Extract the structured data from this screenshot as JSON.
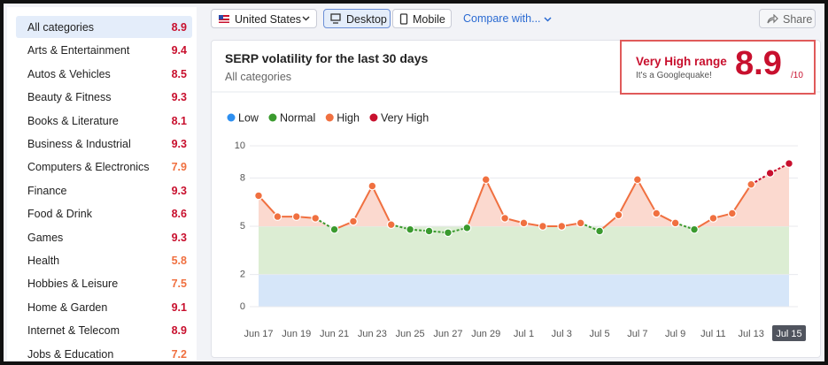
{
  "sidebar": {
    "items": [
      {
        "label": "All categories",
        "score": 8.9
      },
      {
        "label": "Arts & Entertainment",
        "score": 9.4
      },
      {
        "label": "Autos & Vehicles",
        "score": 8.5
      },
      {
        "label": "Beauty & Fitness",
        "score": 9.3
      },
      {
        "label": "Books & Literature",
        "score": 8.1
      },
      {
        "label": "Business & Industrial",
        "score": 9.3
      },
      {
        "label": "Computers & Electronics",
        "score": 7.9
      },
      {
        "label": "Finance",
        "score": 9.3
      },
      {
        "label": "Food & Drink",
        "score": 8.6
      },
      {
        "label": "Games",
        "score": 9.3
      },
      {
        "label": "Health",
        "score": 5.8
      },
      {
        "label": "Hobbies & Leisure",
        "score": 7.5
      },
      {
        "label": "Home & Garden",
        "score": 9.1
      },
      {
        "label": "Internet & Telecom",
        "score": 8.9
      },
      {
        "label": "Jobs & Education",
        "score": 7.2
      }
    ]
  },
  "toolbar": {
    "country": "United States",
    "devices": [
      "Desktop",
      "Mobile"
    ],
    "compare": "Compare with...",
    "share": "Share"
  },
  "card": {
    "title": "SERP volatility for the last 30 days",
    "subtitle": "All categories",
    "score_box": {
      "range": "Very High range",
      "note": "It's a Googlequake!",
      "score": 8.9,
      "scale": "/10"
    }
  },
  "chart_data": {
    "type": "line",
    "categories": [
      "Jun 17",
      null,
      "Jun 19",
      null,
      "Jun 21",
      null,
      "Jun 23",
      null,
      "Jun 25",
      null,
      "Jun 27",
      null,
      "Jun 29",
      null,
      "Jul 1",
      null,
      "Jul 3",
      null,
      "Jul 5",
      null,
      "Jul 7",
      null,
      "Jul 9",
      null,
      "Jul 11",
      null,
      "Jul 13",
      null,
      "Jul 15"
    ],
    "values": [
      6.9,
      5.6,
      5.6,
      5.5,
      4.8,
      5.3,
      7.5,
      5.1,
      4.8,
      4.7,
      4.6,
      4.9,
      7.9,
      5.5,
      5.2,
      5.0,
      5.0,
      5.2,
      4.7,
      5.7,
      7.9,
      5.8,
      5.2,
      4.8,
      5.5,
      5.8,
      7.6,
      8.3,
      8.9
    ],
    "legend": [
      {
        "name": "Low",
        "color": "#2d8ff0"
      },
      {
        "name": "Normal",
        "color": "#3a9a2e"
      },
      {
        "name": "High",
        "color": "#f07040"
      },
      {
        "name": "Very High",
        "color": "#c8102e"
      }
    ],
    "ylim": [
      0,
      10
    ],
    "yticks": [
      0,
      2,
      5,
      8,
      10
    ],
    "grid": true
  }
}
